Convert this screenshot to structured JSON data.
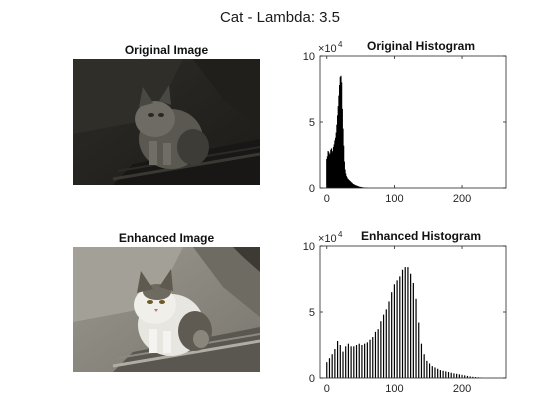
{
  "figure": {
    "title": "Cat - Lambda: 3.5"
  },
  "panels": {
    "original_image": {
      "title": "Original Image",
      "brightness": "dark",
      "background": "#26241f"
    },
    "enhanced_image": {
      "title": "Enhanced Image",
      "brightness": "normal",
      "background": "#8d8b84"
    }
  },
  "chart_data": [
    {
      "type": "bar",
      "title": "Original Histogram",
      "xlabel": "",
      "ylabel": "",
      "xlim": [
        -10,
        265
      ],
      "ylim": [
        0,
        100000
      ],
      "y_exponent_label": "×10",
      "y_exponent_power": "4",
      "xticks": [
        0,
        100,
        200
      ],
      "xtick_labels": [
        "0",
        "100",
        "200"
      ],
      "yticks": [
        0,
        50000,
        100000
      ],
      "ytick_labels": [
        "0",
        "5",
        "10"
      ],
      "bar_color": "#000000",
      "bin_width": 1,
      "x": [
        0,
        1,
        2,
        3,
        4,
        5,
        6,
        7,
        8,
        9,
        10,
        11,
        12,
        13,
        14,
        15,
        16,
        17,
        18,
        19,
        20,
        21,
        22,
        23,
        24,
        25,
        26,
        27,
        28,
        29,
        30,
        31,
        32,
        33,
        34,
        35,
        36,
        37,
        38,
        39,
        40,
        41,
        42,
        43,
        44,
        45,
        46,
        47,
        48,
        49,
        50,
        51,
        52,
        53,
        54,
        55,
        56,
        57,
        58,
        59,
        60
      ],
      "values": [
        22000,
        24000,
        28000,
        27000,
        25000,
        26000,
        29000,
        30000,
        28000,
        27000,
        31000,
        33000,
        36000,
        38000,
        42000,
        48000,
        55000,
        62000,
        70000,
        78000,
        84000,
        85000,
        80000,
        60000,
        45000,
        32000,
        20000,
        14000,
        11000,
        9000,
        8000,
        7000,
        6500,
        6000,
        5500,
        5000,
        4500,
        4000,
        3500,
        3000,
        2800,
        2500,
        2200,
        2000,
        1800,
        1600,
        1400,
        1200,
        1000,
        900,
        800,
        700,
        600,
        500,
        400,
        350,
        300,
        250,
        200,
        150,
        100
      ]
    },
    {
      "type": "bar",
      "title": "Enhanced Histogram",
      "xlabel": "",
      "ylabel": "",
      "xlim": [
        -10,
        265
      ],
      "ylim": [
        0,
        100000
      ],
      "y_exponent_label": "×10",
      "y_exponent_power": "4",
      "xticks": [
        0,
        100,
        200
      ],
      "xtick_labels": [
        "0",
        "100",
        "200"
      ],
      "yticks": [
        0,
        50000,
        100000
      ],
      "ytick_labels": [
        "0",
        "5",
        "10"
      ],
      "bar_color": "#000000",
      "bin_width": 1,
      "x": [
        0,
        4,
        8,
        12,
        16,
        20,
        24,
        28,
        32,
        36,
        40,
        44,
        48,
        52,
        56,
        60,
        64,
        68,
        72,
        76,
        80,
        84,
        88,
        92,
        96,
        100,
        104,
        108,
        112,
        116,
        120,
        124,
        128,
        132,
        136,
        140,
        144,
        148,
        152,
        156,
        160,
        164,
        168,
        172,
        176,
        180,
        184,
        188,
        192,
        196,
        200,
        204,
        208,
        212,
        216,
        220,
        224,
        228
      ],
      "values": [
        12000,
        15000,
        18000,
        22000,
        28000,
        25000,
        20000,
        24000,
        26000,
        24000,
        24000,
        25000,
        26000,
        25000,
        26000,
        27000,
        29000,
        31000,
        35000,
        37000,
        43000,
        48000,
        52000,
        58000,
        65000,
        71000,
        74000,
        77000,
        82000,
        84000,
        84000,
        79000,
        72000,
        60000,
        42000,
        26000,
        18000,
        13000,
        11000,
        9000,
        8000,
        7000,
        6000,
        5500,
        5000,
        4500,
        4000,
        3500,
        3200,
        2800,
        2400,
        2000,
        1600,
        1200,
        900,
        700,
        500,
        300
      ]
    }
  ]
}
